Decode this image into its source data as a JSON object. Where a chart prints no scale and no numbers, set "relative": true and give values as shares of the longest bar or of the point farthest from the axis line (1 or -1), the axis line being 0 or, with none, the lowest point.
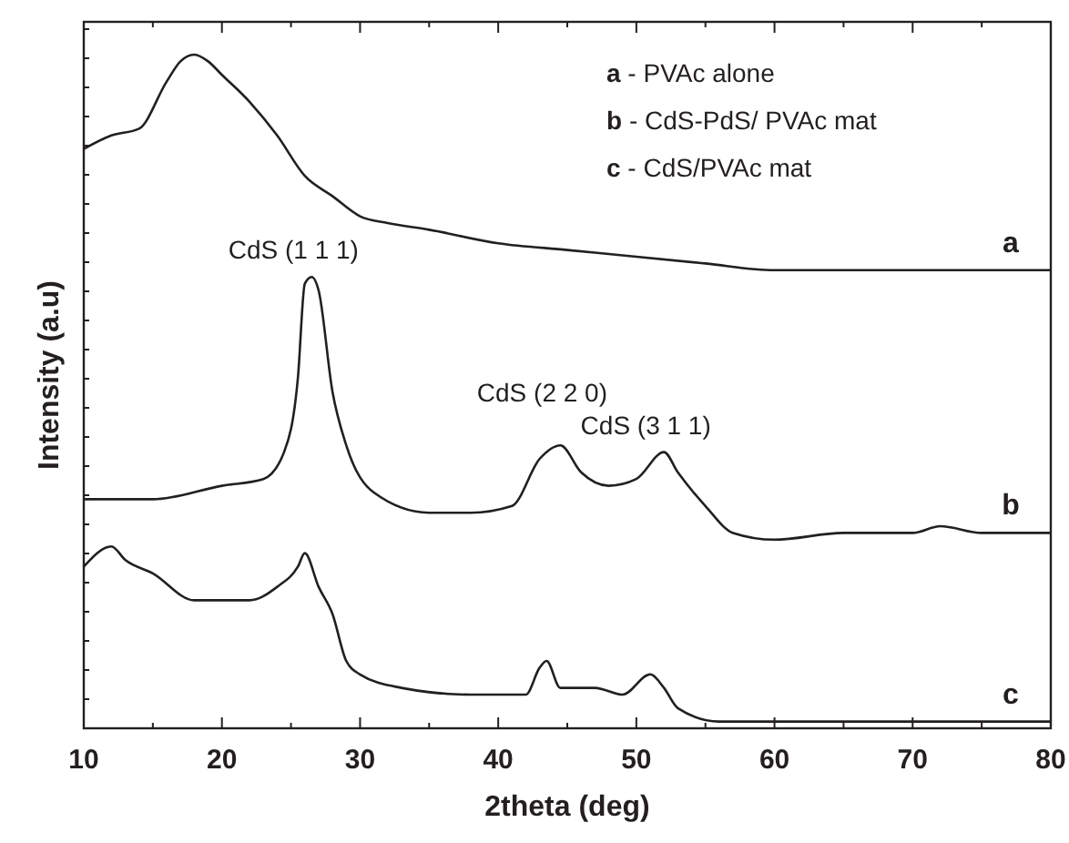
{
  "chart_data": {
    "type": "line",
    "relative": true,
    "xlabel": "2theta (deg)",
    "ylabel": "Intensity (a.u)",
    "tick_labels": "x",
    "xlim": [
      10,
      80
    ],
    "xticks": [
      10,
      {
        "value": 15,
        "label": null
      },
      20,
      {
        "value": 25,
        "label": null
      },
      30,
      {
        "value": 35,
        "label": null
      },
      40,
      {
        "value": 45,
        "label": null
      },
      50,
      {
        "value": 55,
        "label": null
      },
      60,
      {
        "value": 65,
        "label": null
      },
      70,
      {
        "value": 75,
        "label": null
      },
      80
    ],
    "series": [
      {
        "name": "a",
        "color": "#231f20",
        "x": [
          10,
          12,
          14,
          16,
          17,
          18,
          19,
          20,
          22,
          24,
          26,
          28,
          30,
          32,
          35,
          40,
          45,
          50,
          55,
          60,
          65,
          70,
          80
        ],
        "values": [
          0.86,
          0.88,
          0.89,
          0.96,
          0.99,
          1.0,
          0.99,
          0.97,
          0.93,
          0.88,
          0.82,
          0.79,
          0.76,
          0.75,
          0.74,
          0.72,
          0.71,
          0.7,
          0.69,
          0.68,
          0.68,
          0.68,
          0.68
        ]
      },
      {
        "name": "b",
        "color": "#231f20",
        "x": [
          10,
          15,
          20,
          23,
          24.5,
          25.5,
          26,
          26.5,
          27,
          28,
          29,
          31,
          35,
          38,
          41,
          43,
          44.5,
          46,
          48,
          50,
          52,
          53,
          55,
          57,
          60,
          65,
          70,
          72,
          75,
          80
        ],
        "values": [
          0.34,
          0.34,
          0.36,
          0.37,
          0.41,
          0.52,
          0.66,
          0.67,
          0.65,
          0.5,
          0.42,
          0.35,
          0.32,
          0.32,
          0.33,
          0.4,
          0.42,
          0.38,
          0.36,
          0.37,
          0.41,
          0.38,
          0.33,
          0.29,
          0.28,
          0.29,
          0.29,
          0.3,
          0.29,
          0.29
        ]
      },
      {
        "name": "c",
        "color": "#231f20",
        "x": [
          10,
          12,
          13,
          15,
          18,
          20,
          22,
          24,
          25.5,
          26,
          27,
          28,
          29,
          30,
          33,
          38,
          42,
          43,
          43.5,
          44.5,
          46,
          47,
          49,
          51,
          52,
          53,
          56,
          60,
          70,
          80
        ],
        "values": [
          0.24,
          0.27,
          0.25,
          0.23,
          0.19,
          0.19,
          0.19,
          0.21,
          0.24,
          0.26,
          0.21,
          0.17,
          0.1,
          0.08,
          0.06,
          0.05,
          0.05,
          0.09,
          0.1,
          0.06,
          0.06,
          0.06,
          0.05,
          0.08,
          0.06,
          0.03,
          0.01,
          0.01,
          0.01,
          0.01
        ]
      }
    ],
    "annotations": [
      {
        "text": "CdS (1 1 1)",
        "x": 26.5,
        "y": 0.67
      },
      {
        "text": "CdS (2 2 0)",
        "x": 44.5,
        "y": 0.42
      },
      {
        "text": "CdS (3 1 1)",
        "x": 52,
        "y": 0.41
      },
      "a - PVAc alone",
      "b - CdS-PdS/ PVAc mat",
      "c - CdS/PVAc mat"
    ]
  }
}
